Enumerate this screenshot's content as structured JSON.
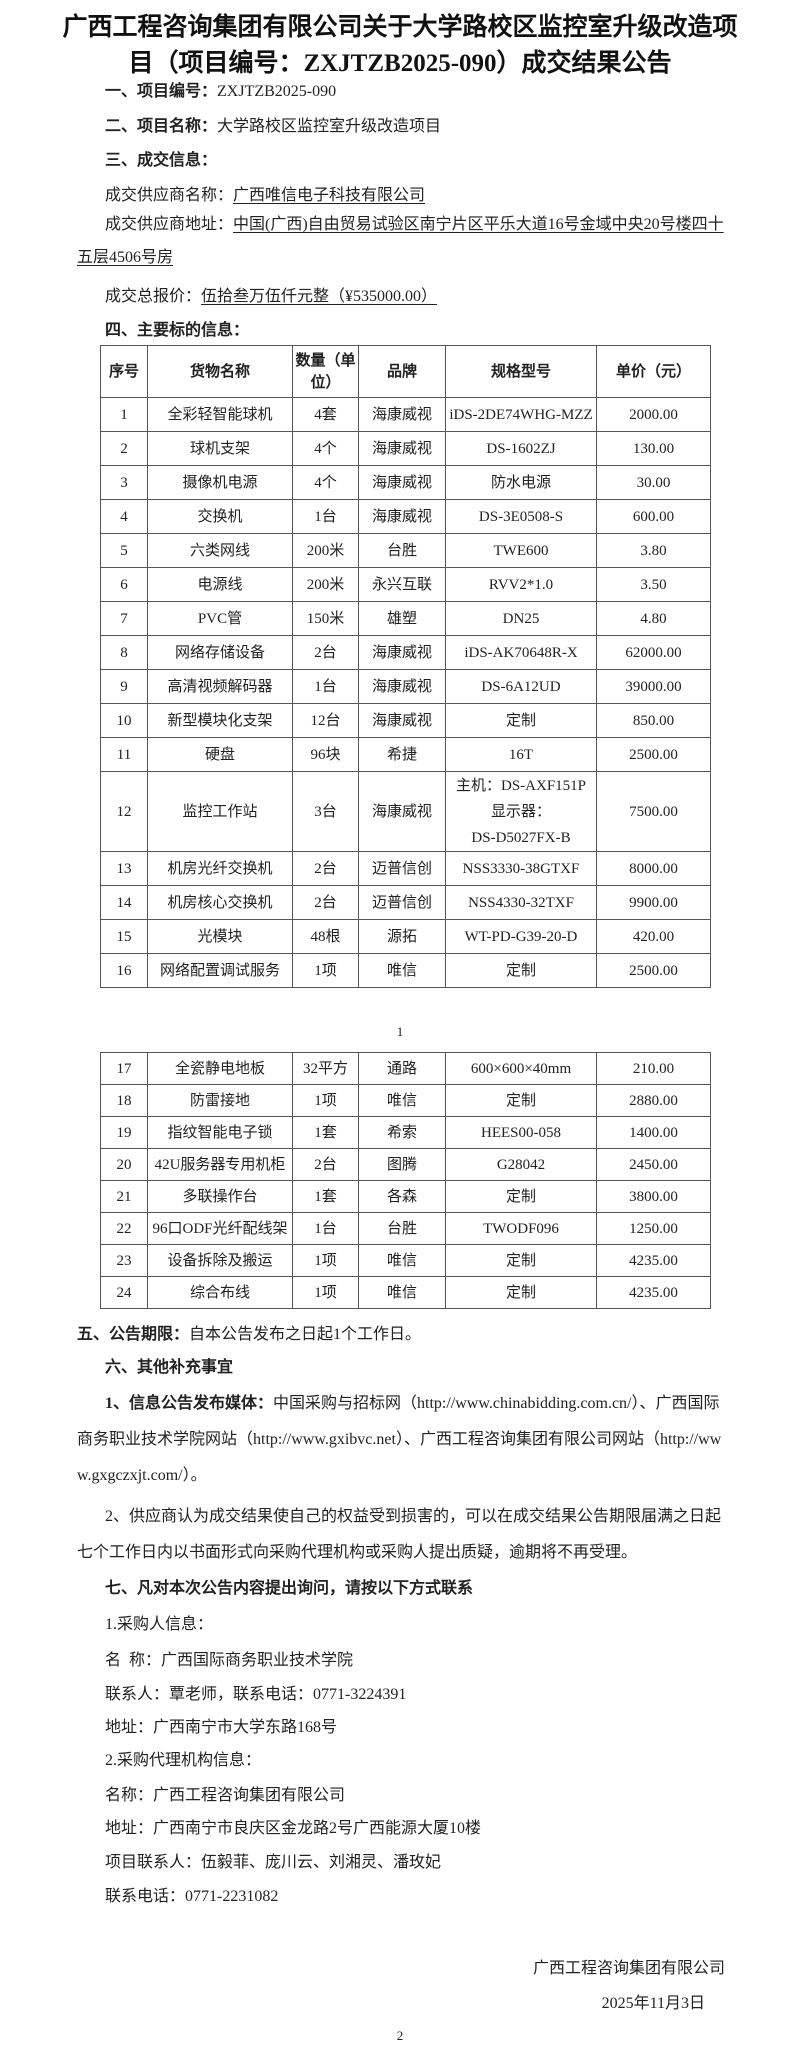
{
  "title": "广西工程咨询集团有限公司关于大学路校区监控室升级改造项目（项目编号：ZXJTZB2025-090）成交结果公告",
  "sec1": {
    "label": "一、项目编号：",
    "value": "ZXJTZB2025-090"
  },
  "sec2": {
    "label": "二、项目名称：",
    "value": "大学路校区监控室升级改造项目"
  },
  "sec3": {
    "label": "三、成交信息：",
    "supplier_label": "成交供应商名称：",
    "supplier": "广西唯信电子科技有限公司",
    "address_label": "成交供应商地址：",
    "address": "中国(广西)自由贸易试验区南宁片区平乐大道16号金域中央20号楼四十五层4506号房",
    "price_label": "成交总报价：",
    "price": "伍拾叁万伍仟元整（¥535000.00）"
  },
  "sec4": {
    "label": "四、主要标的信息："
  },
  "table": {
    "headers": [
      "序号",
      "货物名称",
      "数量（单位）",
      "品牌",
      "规格型号",
      "单价（元）"
    ],
    "rows": [
      [
        "1",
        "全彩轻智能球机",
        "4套",
        "海康威视",
        "iDS-2DE74WHG-MZZ",
        "2000.00"
      ],
      [
        "2",
        "球机支架",
        "4个",
        "海康威视",
        "DS-1602ZJ",
        "130.00"
      ],
      [
        "3",
        "摄像机电源",
        "4个",
        "海康威视",
        "防水电源",
        "30.00"
      ],
      [
        "4",
        "交换机",
        "1台",
        "海康威视",
        "DS-3E0508-S",
        "600.00"
      ],
      [
        "5",
        "六类网线",
        "200米",
        "台胜",
        "TWE600",
        "3.80"
      ],
      [
        "6",
        "电源线",
        "200米",
        "永兴互联",
        "RVV2*1.0",
        "3.50"
      ],
      [
        "7",
        "PVC管",
        "150米",
        "雄塑",
        "DN25",
        "4.80"
      ],
      [
        "8",
        "网络存储设备",
        "2台",
        "海康威视",
        "iDS-AK70648R-X",
        "62000.00"
      ],
      [
        "9",
        "高清视频解码器",
        "1台",
        "海康威视",
        "DS-6A12UD",
        "39000.00"
      ],
      [
        "10",
        "新型模块化支架",
        "12台",
        "海康威视",
        "定制",
        "850.00"
      ],
      [
        "11",
        "硬盘",
        "96块",
        "希捷",
        "16T",
        "2500.00"
      ],
      [
        "12",
        "监控工作站",
        "3台",
        "海康威视",
        "主机：DS-AXF151P\n显示器：\nDS-D5027FX-B",
        "7500.00"
      ],
      [
        "13",
        "机房光纤交换机",
        "2台",
        "迈普信创",
        "NSS3330-38GTXF",
        "8000.00"
      ],
      [
        "14",
        "机房核心交换机",
        "2台",
        "迈普信创",
        "NSS4330-32TXF",
        "9900.00"
      ],
      [
        "15",
        "光模块",
        "48根",
        "源拓",
        "WT-PD-G39-20-D",
        "420.00"
      ],
      [
        "16",
        "网络配置调试服务",
        "1项",
        "唯信",
        "定制",
        "2500.00"
      ],
      [
        "17",
        "全瓷静电地板",
        "32平方",
        "通路",
        "600×600×40mm",
        "210.00"
      ],
      [
        "18",
        "防雷接地",
        "1项",
        "唯信",
        "定制",
        "2880.00"
      ],
      [
        "19",
        "指纹智能电子锁",
        "1套",
        "希索",
        "HEES00-058",
        "1400.00"
      ],
      [
        "20",
        "42U服务器专用机柜",
        "2台",
        "图腾",
        "G28042",
        "2450.00"
      ],
      [
        "21",
        "多联操作台",
        "1套",
        "各森",
        "定制",
        "3800.00"
      ],
      [
        "22",
        "96口ODF光纤配线架",
        "1台",
        "台胜",
        "TWODF096",
        "1250.00"
      ],
      [
        "23",
        "设备拆除及搬运",
        "1项",
        "唯信",
        "定制",
        "4235.00"
      ],
      [
        "24",
        "综合布线",
        "1项",
        "唯信",
        "定制",
        "4235.00"
      ]
    ]
  },
  "page1": "1",
  "sec5": {
    "label": "五、公告期限：",
    "value": "自本公告发布之日起1个工作日。"
  },
  "sec6": {
    "label": "六、其他补充事宜",
    "p1_label": "1、信息公告发布媒体：",
    "p1": "中国采购与招标网（http://www.chinabidding.com.cn/）、广西国际商务职业技术学院网站（http://www.gxibvc.net）、广西工程咨询集团有限公司网站（http://www.gxgczxjt.com/）。",
    "p2": "2、供应商认为成交结果使自己的权益受到损害的，可以在成交结果公告期限届满之日起七个工作日内以书面形式向采购代理机构或采购人提出质疑，逾期将不再受理。"
  },
  "sec7": {
    "label": "七、凡对本次公告内容提出询问，请按以下方式联系",
    "buyer_label": "1.采购人信息：",
    "buyer_name": "名  称：广西国际商务职业技术学院",
    "buyer_contact": "联系人：覃老师，联系电话：0771-3224391",
    "buyer_address": "地址：广西南宁市大学东路168号",
    "agent_label": "2.采购代理机构信息：",
    "agent_name": "名称：广西工程咨询集团有限公司",
    "agent_address": "地址：广西南宁市良庆区金龙路2号广西能源大厦10楼",
    "agent_contacts": "项目联系人：伍毅菲、庞川云、刘湘灵、潘玫妃",
    "agent_phone": "联系电话：0771-2231082"
  },
  "signature": {
    "org": "广西工程咨询集团有限公司",
    "date": "2025年11月3日"
  },
  "page2": "2"
}
